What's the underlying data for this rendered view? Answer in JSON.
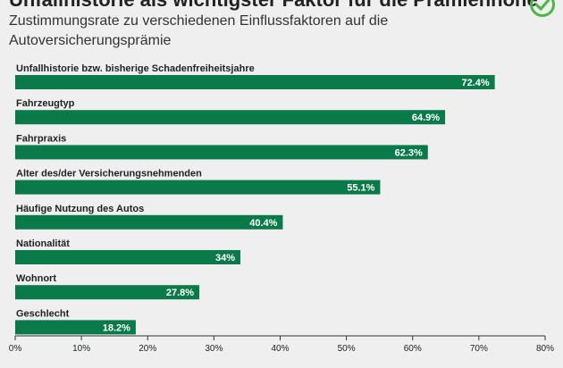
{
  "title": "Unfallhistorie als wichtigster Faktor für die Prämienhöhe",
  "subtitle": "Zustimmungsrate zu verschiedenen Einflussfaktoren auf die Autoversicherungsprämie",
  "badge_icon": "check-circle-icon",
  "colors": {
    "bar": "#0b7a4b",
    "badge": "#4cb648",
    "axis": "#333333"
  },
  "chart_data": {
    "type": "bar",
    "orientation": "horizontal",
    "title": "Unfallhistorie als wichtigster Faktor für die Prämienhöhe",
    "subtitle": "Zustimmungsrate zu verschiedenen Einflussfaktoren auf die Autoversicherungsprämie",
    "categories": [
      "Unfallhistorie bzw. bisherige Schadenfreiheitsjahre",
      "Fahrzeugtyp",
      "Fahrpraxis",
      "Alter des/der Versicherungsnehmenden",
      "Häufige Nutzung des Autos",
      "Nationalität",
      "Wohnort",
      "Geschlecht"
    ],
    "values": [
      72.4,
      64.9,
      62.3,
      55.1,
      40.4,
      34,
      27.8,
      18.2
    ],
    "value_labels": [
      "72.4%",
      "64.9%",
      "62.3%",
      "55.1%",
      "40.4%",
      "34%",
      "27.8%",
      "18.2%"
    ],
    "xlim": [
      0,
      80
    ],
    "xticks": [
      0,
      10,
      20,
      30,
      40,
      50,
      60,
      70,
      80
    ],
    "xtick_labels": [
      "0%",
      "10%",
      "20%",
      "30%",
      "40%",
      "50%",
      "60%",
      "70%",
      "80%"
    ],
    "xlabel": "",
    "ylabel": "",
    "grid": false,
    "legend": "none"
  }
}
